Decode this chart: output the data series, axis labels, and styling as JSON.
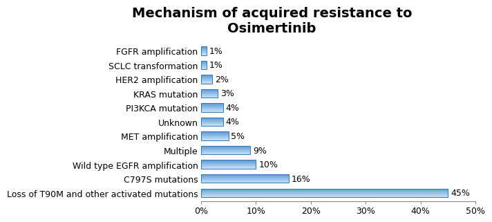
{
  "title": "Mechanism of acquired resistance to\nOsimertinib",
  "categories": [
    "Loss of T90M and other activated mutations",
    "C797S mutations",
    "Wild type EGFR amplification",
    "Multiple",
    "MET amplification",
    "Unknown",
    "PI3KCA mutation",
    "KRAS mutation",
    "HER2 amplification",
    "SCLC transformation",
    "FGFR amplification"
  ],
  "values": [
    45,
    16,
    10,
    9,
    5,
    4,
    4,
    3,
    2,
    1,
    1
  ],
  "labels": [
    "45%",
    "16%",
    "10%",
    "9%",
    "5%",
    "4%",
    "4%",
    "3%",
    "2%",
    "1%",
    "1%"
  ],
  "bar_color_light": "#aad4f5",
  "bar_color_dark": "#5b9bd5",
  "bar_border_color": "#2e75b6",
  "xlim": [
    0,
    50
  ],
  "xtick_values": [
    0,
    10,
    20,
    30,
    40,
    50
  ],
  "xtick_labels": [
    "0%",
    "10%",
    "20%",
    "30%",
    "40%",
    "50%"
  ],
  "title_fontsize": 14,
  "label_fontsize": 9,
  "tick_fontsize": 9,
  "background_color": "#ffffff"
}
